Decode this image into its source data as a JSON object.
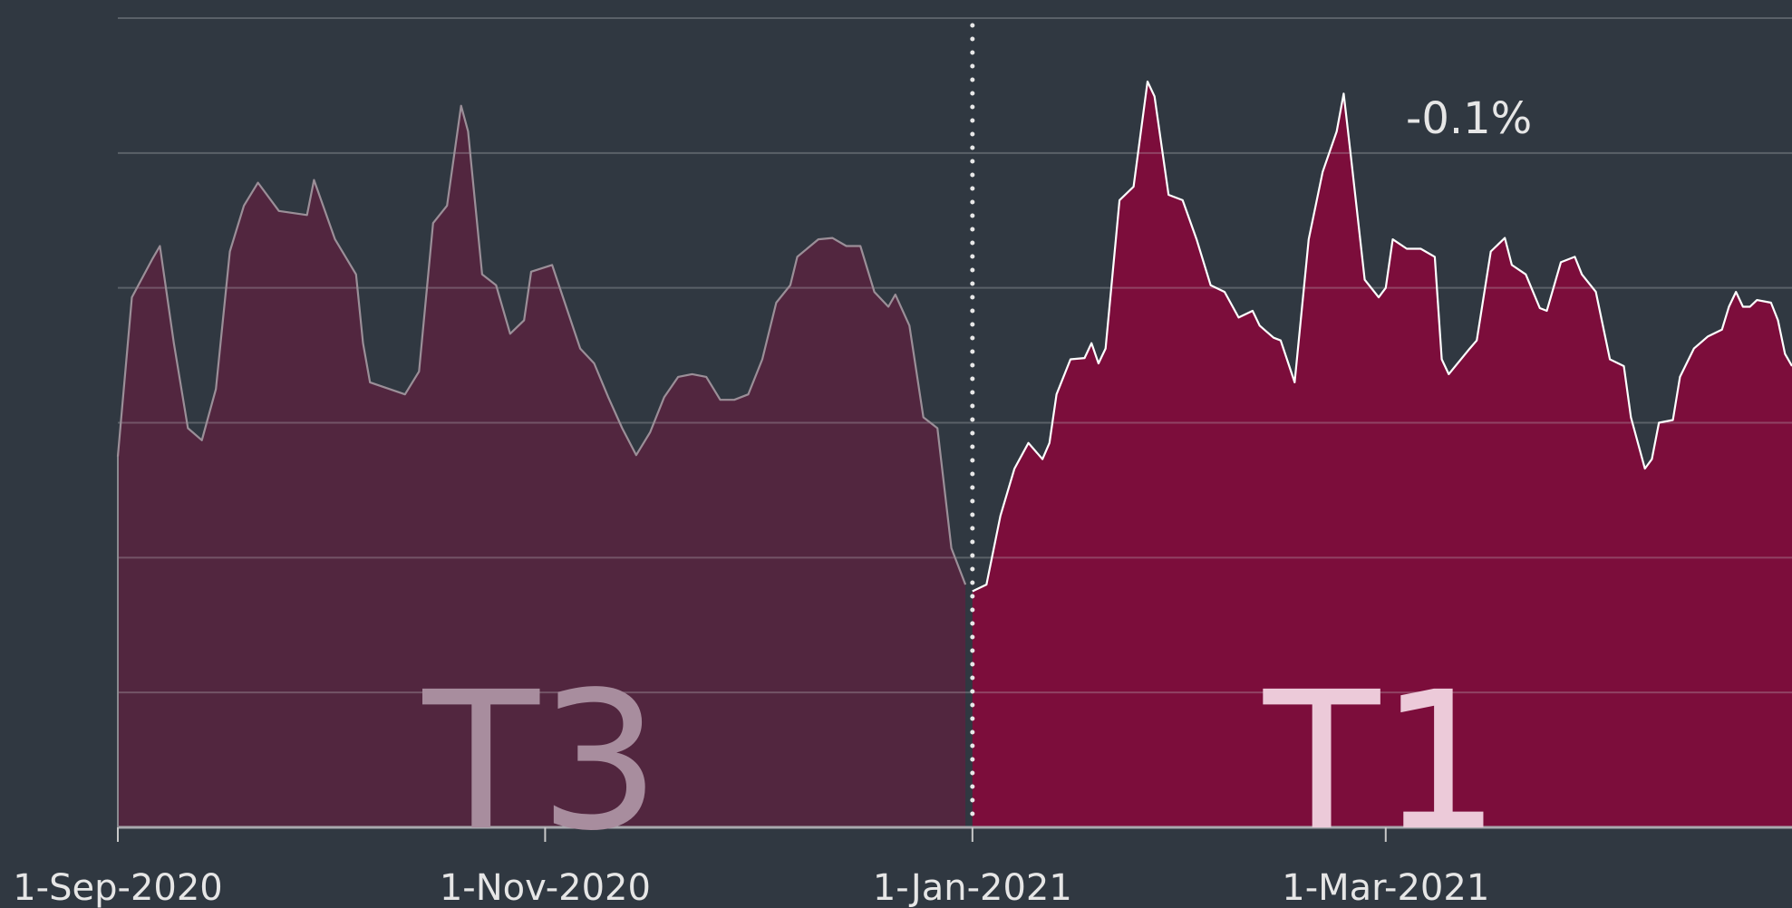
{
  "chart_data": {
    "type": "area",
    "annotation": "-0.1%",
    "xlim": [
      "2020-09-01",
      "2021-04-28"
    ],
    "xticks": [
      {
        "value": "2020-09-01",
        "label": "1-Sep-2020"
      },
      {
        "value": "2020-11-01",
        "label": "1-Nov-2020"
      },
      {
        "value": "2021-01-01",
        "label": "1-Jan-2021"
      },
      {
        "value": "2021-03-01",
        "label": "1-Mar-2021"
      }
    ],
    "ylim": [
      0,
      6
    ],
    "yticks": [
      0,
      1,
      2,
      3,
      4,
      5,
      6
    ],
    "grid": true,
    "series": [
      {
        "name": "T3",
        "color": "#52263f",
        "line_color": "#9b8f98",
        "label_color": "#a88d9e",
        "x": [
          "2020-09-01",
          "2020-09-03",
          "2020-09-06",
          "2020-09-07",
          "2020-09-09",
          "2020-09-11",
          "2020-09-13",
          "2020-09-15",
          "2020-09-17",
          "2020-09-19",
          "2020-09-21",
          "2020-09-24",
          "2020-09-28",
          "2020-09-29",
          "2020-10-02",
          "2020-10-05",
          "2020-10-06",
          "2020-10-07",
          "2020-10-12",
          "2020-10-14",
          "2020-10-16",
          "2020-10-18",
          "2020-10-20",
          "2020-10-21",
          "2020-10-23",
          "2020-10-25",
          "2020-10-27",
          "2020-10-29",
          "2020-10-30",
          "2020-11-02",
          "2020-11-04",
          "2020-11-06",
          "2020-11-08",
          "2020-11-10",
          "2020-11-12",
          "2020-11-14",
          "2020-11-16",
          "2020-11-18",
          "2020-11-20",
          "2020-11-22",
          "2020-11-24",
          "2020-11-26",
          "2020-11-28",
          "2020-11-30",
          "2020-12-02",
          "2020-12-04",
          "2020-12-06",
          "2020-12-07",
          "2020-12-10",
          "2020-12-12",
          "2020-12-14",
          "2020-12-16",
          "2020-12-18",
          "2020-12-20",
          "2020-12-21",
          "2020-12-23",
          "2020-12-25",
          "2020-12-27",
          "2020-12-29",
          "2020-12-31"
        ],
        "values": [
          2.75,
          3.93,
          4.22,
          4.31,
          3.59,
          2.96,
          2.87,
          3.25,
          4.27,
          4.61,
          4.78,
          4.57,
          4.54,
          4.8,
          4.36,
          4.1,
          3.59,
          3.3,
          3.21,
          3.38,
          4.48,
          4.61,
          5.35,
          5.16,
          4.1,
          4.02,
          3.66,
          3.76,
          4.12,
          4.17,
          3.86,
          3.55,
          3.44,
          3.19,
          2.96,
          2.76,
          2.93,
          3.19,
          3.34,
          3.36,
          3.34,
          3.17,
          3.17,
          3.21,
          3.47,
          3.89,
          4.02,
          4.23,
          4.36,
          4.37,
          4.31,
          4.31,
          3.97,
          3.86,
          3.95,
          3.72,
          3.04,
          2.96,
          2.07,
          1.8
        ]
      },
      {
        "name": "T1",
        "color": "#7c0d3b",
        "line_color": "#ffffff",
        "label_color": "#eccad9",
        "x": [
          "2021-01-01",
          "2021-01-03",
          "2021-01-05",
          "2021-01-07",
          "2021-01-09",
          "2021-01-11",
          "2021-01-12",
          "2021-01-13",
          "2021-01-15",
          "2021-01-17",
          "2021-01-18",
          "2021-01-19",
          "2021-01-20",
          "2021-01-22",
          "2021-01-24",
          "2021-01-26",
          "2021-01-27",
          "2021-01-29",
          "2021-01-31",
          "2021-02-02",
          "2021-02-04",
          "2021-02-06",
          "2021-02-08",
          "2021-02-10",
          "2021-02-11",
          "2021-02-13",
          "2021-02-14",
          "2021-02-16",
          "2021-02-18",
          "2021-02-20",
          "2021-02-22",
          "2021-02-23",
          "2021-02-24",
          "2021-02-26",
          "2021-02-28",
          "2021-03-01",
          "2021-03-02",
          "2021-03-04",
          "2021-03-06",
          "2021-03-08",
          "2021-03-09",
          "2021-03-10",
          "2021-03-13",
          "2021-03-14",
          "2021-03-16",
          "2021-03-18",
          "2021-03-19",
          "2021-03-21",
          "2021-03-23",
          "2021-03-24",
          "2021-03-26",
          "2021-03-28",
          "2021-03-29",
          "2021-03-31",
          "2021-04-02",
          "2021-04-04",
          "2021-04-05",
          "2021-04-07",
          "2021-04-08",
          "2021-04-09",
          "2021-04-11",
          "2021-04-12",
          "2021-04-14",
          "2021-04-16",
          "2021-04-18",
          "2021-04-19",
          "2021-04-20",
          "2021-04-21",
          "2021-04-22",
          "2021-04-23",
          "2021-04-25",
          "2021-04-26",
          "2021-04-27",
          "2021-04-28"
        ],
        "values": [
          1.75,
          1.8,
          2.31,
          2.66,
          2.85,
          2.73,
          2.85,
          3.21,
          3.47,
          3.48,
          3.59,
          3.44,
          3.55,
          4.65,
          4.75,
          5.53,
          5.42,
          4.69,
          4.65,
          4.36,
          4.02,
          3.97,
          3.78,
          3.83,
          3.72,
          3.63,
          3.61,
          3.3,
          4.36,
          4.86,
          5.16,
          5.44,
          4.99,
          4.06,
          3.93,
          4.0,
          4.36,
          4.29,
          4.29,
          4.23,
          3.47,
          3.36,
          3.55,
          3.61,
          4.27,
          4.37,
          4.17,
          4.1,
          3.85,
          3.83,
          4.19,
          4.23,
          4.1,
          3.97,
          3.47,
          3.42,
          3.04,
          2.66,
          2.73,
          3.0,
          3.02,
          3.34,
          3.55,
          3.64,
          3.69,
          3.86,
          3.97,
          3.86,
          3.86,
          3.91,
          3.89,
          3.76,
          3.51,
          3.42
        ]
      }
    ]
  }
}
